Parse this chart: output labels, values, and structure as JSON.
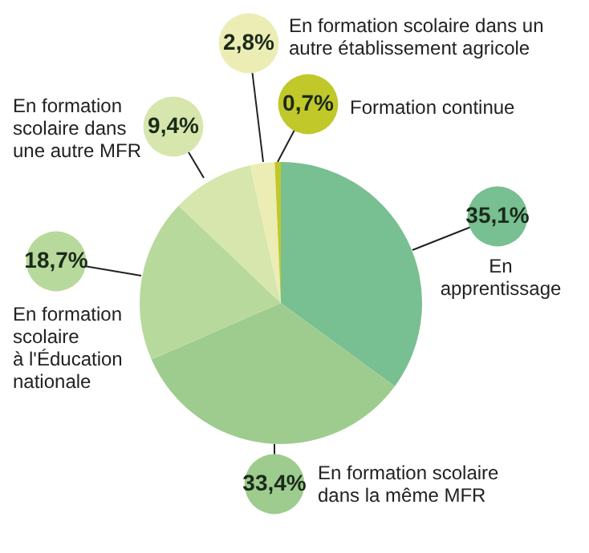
{
  "chart_data": {
    "type": "pie",
    "categories": [
      "En\napprentissage",
      "En formation scolaire\ndans la même MFR",
      "En formation\nscolaire\nà l'Éducation\nnationale",
      "En formation\nscolaire dans\nune autre MFR",
      "En formation scolaire dans un\nautre établissement agricole",
      "Formation continue"
    ],
    "values": [
      35.1,
      33.4,
      18.7,
      9.4,
      2.8,
      0.7
    ],
    "value_labels": [
      "35,1%",
      "33,4%",
      "18,7%",
      "9,4%",
      "2,8%",
      "0,7%"
    ],
    "colors": [
      "#78bf92",
      "#9dcc8e",
      "#b8d99c",
      "#d6e6ad",
      "#ebedb5",
      "#c0c82a"
    ]
  }
}
